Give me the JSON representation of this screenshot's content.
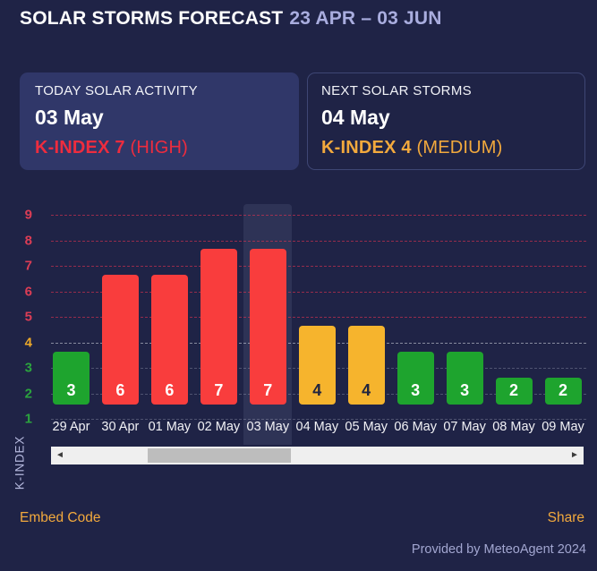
{
  "header": {
    "title": "SOLAR STORMS FORECAST",
    "date_range": "23 APR – 03 JUN"
  },
  "cards": {
    "today": {
      "label": "TODAY SOLAR ACTIVITY",
      "date": "03 May",
      "kindex_label": "K-INDEX 7",
      "severity": "(HIGH)",
      "color": "#ee2c3e"
    },
    "next": {
      "label": "NEXT SOLAR STORMS",
      "date": "04 May",
      "kindex_label": "K-INDEX 4",
      "severity": "(MEDIUM)",
      "color": "#f2a93d"
    }
  },
  "chart_data": {
    "type": "bar",
    "title": "SOLAR STORMS FORECAST 23 APR – 03 JUN",
    "categories": [
      "29 Apr",
      "30 Apr",
      "01 May",
      "02 May",
      "03 May",
      "04 May",
      "05 May",
      "06 May",
      "07 May",
      "08 May",
      "09 May"
    ],
    "values": [
      3,
      6,
      6,
      7,
      7,
      4,
      4,
      3,
      3,
      2,
      2
    ],
    "levels": [
      "low",
      "high",
      "high",
      "high",
      "high",
      "medium",
      "medium",
      "low",
      "low",
      "low",
      "low"
    ],
    "highlighted_category": "03 May",
    "highlighted_index": 4,
    "ylabel": "K-INDEX",
    "xlabel": "",
    "yticks": [
      9,
      8,
      7,
      6,
      5,
      4,
      3,
      2,
      1
    ],
    "ylim": [
      1,
      9
    ],
    "grid": true,
    "legend": false,
    "bar_colors": {
      "low": "#1ea42e",
      "medium": "#f6b42d",
      "high": "#f93d3d"
    },
    "bar_label_colors": {
      "low": "#ffffff",
      "medium": "#20243f",
      "high": "#ffffff"
    },
    "ytick_colors": {
      "high": "#dc3d55",
      "medium": "#eda929",
      "low": "#2ba43e"
    }
  },
  "scrollbar": {
    "left_arrow": "◄",
    "right_arrow": "►"
  },
  "footer": {
    "embed": "Embed Code",
    "share": "Share",
    "provided": "Provided by MeteoAgent 2024"
  }
}
